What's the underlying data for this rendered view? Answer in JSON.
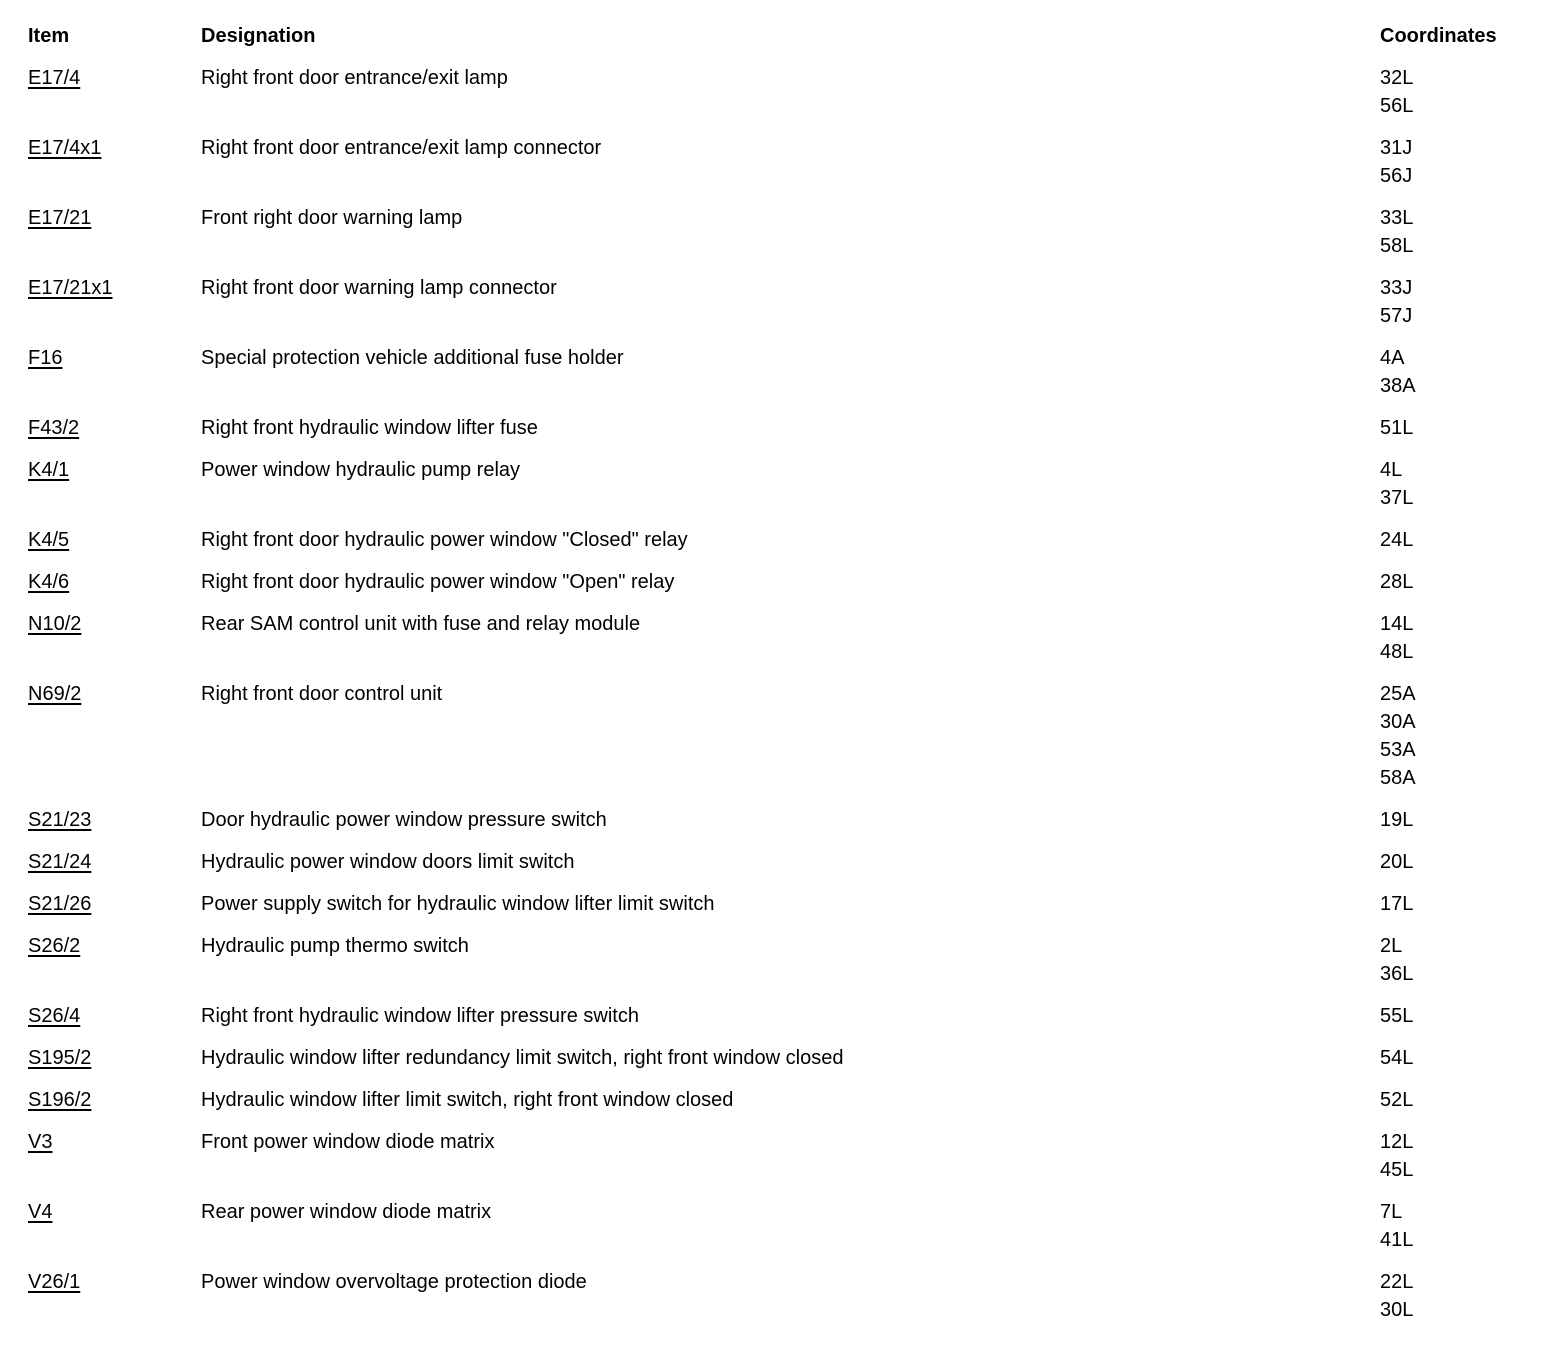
{
  "colors": {
    "background": "#ffffff",
    "text": "#000000"
  },
  "table": {
    "headers": {
      "item": "Item",
      "designation": "Designation",
      "coordinates": "Coordinates"
    },
    "rows": [
      {
        "item": "E17/4",
        "designation": "Right front door entrance/exit lamp",
        "coordinates": [
          "32L",
          "56L"
        ]
      },
      {
        "item": "E17/4x1",
        "designation": "Right front door entrance/exit lamp connector",
        "coordinates": [
          "31J",
          "56J"
        ]
      },
      {
        "item": "E17/21",
        "designation": "Front right door warning lamp",
        "coordinates": [
          "33L",
          "58L"
        ]
      },
      {
        "item": "E17/21x1",
        "designation": "Right front door warning lamp connector",
        "coordinates": [
          "33J",
          "57J"
        ]
      },
      {
        "item": "F16",
        "designation": "Special protection vehicle additional fuse holder",
        "coordinates": [
          "4A",
          "38A"
        ]
      },
      {
        "item": "F43/2",
        "designation": "Right front hydraulic window lifter fuse",
        "coordinates": [
          "51L"
        ]
      },
      {
        "item": "K4/1",
        "designation": "Power window hydraulic pump relay",
        "coordinates": [
          "4L",
          "37L"
        ]
      },
      {
        "item": "K4/5",
        "designation": "Right front door hydraulic power window \"Closed\" relay",
        "coordinates": [
          "24L"
        ]
      },
      {
        "item": "K4/6",
        "designation": "Right front door hydraulic power window \"Open\" relay",
        "coordinates": [
          "28L"
        ]
      },
      {
        "item": "N10/2",
        "designation": "Rear SAM control unit with fuse and relay module",
        "coordinates": [
          "14L",
          "48L"
        ]
      },
      {
        "item": "N69/2",
        "designation": "Right front door control unit",
        "coordinates": [
          "25A",
          "30A",
          "53A",
          "58A"
        ]
      },
      {
        "item": "S21/23",
        "designation": "Door hydraulic power window pressure switch",
        "coordinates": [
          "19L"
        ]
      },
      {
        "item": "S21/24",
        "designation": "Hydraulic power window doors limit switch",
        "coordinates": [
          "20L"
        ]
      },
      {
        "item": "S21/26",
        "designation": "Power supply switch for hydraulic window lifter limit switch",
        "coordinates": [
          "17L"
        ]
      },
      {
        "item": "S26/2",
        "designation": "Hydraulic pump thermo switch",
        "coordinates": [
          "2L",
          "36L"
        ]
      },
      {
        "item": "S26/4",
        "designation": "Right front hydraulic window lifter pressure switch",
        "coordinates": [
          "55L"
        ]
      },
      {
        "item": "S195/2",
        "designation": "Hydraulic window lifter redundancy limit switch, right front window closed",
        "coordinates": [
          "54L"
        ]
      },
      {
        "item": "S196/2",
        "designation": "Hydraulic window lifter limit switch, right front window closed",
        "coordinates": [
          "52L"
        ]
      },
      {
        "item": "V3",
        "designation": "Front power window diode matrix",
        "coordinates": [
          "12L",
          "45L"
        ]
      },
      {
        "item": "V4",
        "designation": "Rear power window diode matrix",
        "coordinates": [
          "7L",
          "41L"
        ]
      },
      {
        "item": "V26/1",
        "designation": "Power window overvoltage protection diode",
        "coordinates": [
          "22L",
          "30L"
        ]
      }
    ]
  }
}
